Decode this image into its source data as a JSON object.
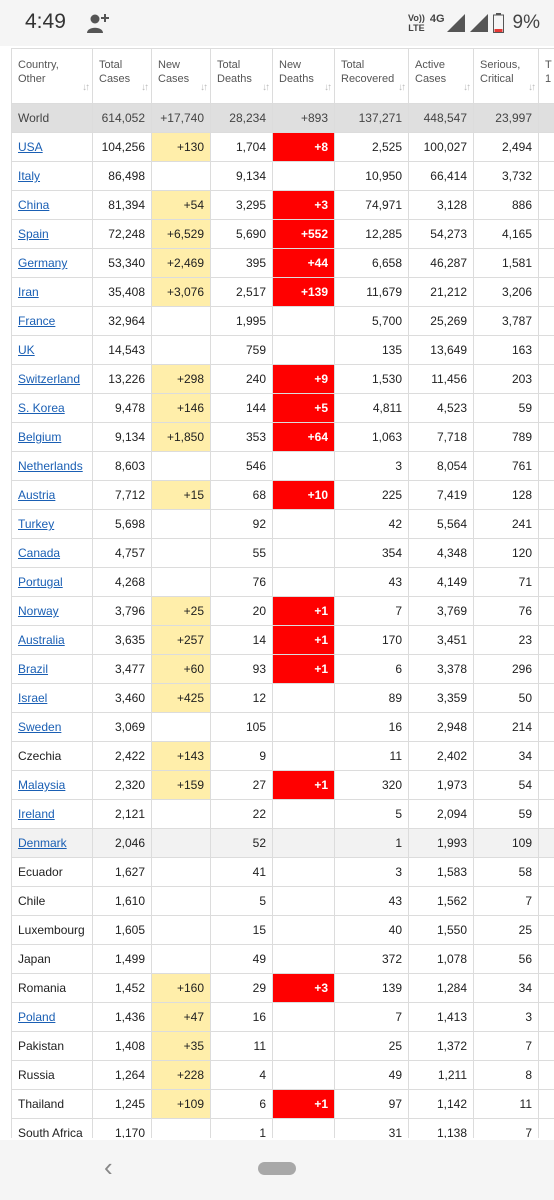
{
  "status_bar": {
    "time": "4:49",
    "volte_top": "Vo))",
    "volte_bottom": "LTE",
    "network": "4G",
    "battery_percent": "9%"
  },
  "table": {
    "columns": [
      [
        "Country,",
        "Other"
      ],
      [
        "Total",
        "Cases"
      ],
      [
        "New",
        "Cases"
      ],
      [
        "Total",
        "Deaths"
      ],
      [
        "New",
        "Deaths"
      ],
      [
        "Total",
        "Recovered"
      ],
      [
        "Active",
        "Cases"
      ],
      [
        "Serious,",
        "Critical"
      ],
      [
        "T",
        "1"
      ]
    ],
    "world": [
      "World",
      "614,052",
      "+17,740",
      "28,234",
      "+893",
      "137,271",
      "448,547",
      "23,997",
      ""
    ],
    "rows": [
      {
        "name": "USA",
        "link": true,
        "tc": "104,256",
        "nc": "+130",
        "td": "1,704",
        "nd": "+8",
        "tr": "2,525",
        "ac": "100,027",
        "sc": "2,494"
      },
      {
        "name": "Italy",
        "link": true,
        "tc": "86,498",
        "nc": "",
        "td": "9,134",
        "nd": "",
        "tr": "10,950",
        "ac": "66,414",
        "sc": "3,732"
      },
      {
        "name": "China",
        "link": true,
        "tc": "81,394",
        "nc": "+54",
        "td": "3,295",
        "nd": "+3",
        "tr": "74,971",
        "ac": "3,128",
        "sc": "886"
      },
      {
        "name": "Spain",
        "link": true,
        "tc": "72,248",
        "nc": "+6,529",
        "td": "5,690",
        "nd": "+552",
        "tr": "12,285",
        "ac": "54,273",
        "sc": "4,165"
      },
      {
        "name": "Germany",
        "link": true,
        "tc": "53,340",
        "nc": "+2,469",
        "td": "395",
        "nd": "+44",
        "tr": "6,658",
        "ac": "46,287",
        "sc": "1,581"
      },
      {
        "name": "Iran",
        "link": true,
        "tc": "35,408",
        "nc": "+3,076",
        "td": "2,517",
        "nd": "+139",
        "tr": "11,679",
        "ac": "21,212",
        "sc": "3,206"
      },
      {
        "name": "France",
        "link": true,
        "tc": "32,964",
        "nc": "",
        "td": "1,995",
        "nd": "",
        "tr": "5,700",
        "ac": "25,269",
        "sc": "3,787"
      },
      {
        "name": "UK",
        "link": true,
        "tc": "14,543",
        "nc": "",
        "td": "759",
        "nd": "",
        "tr": "135",
        "ac": "13,649",
        "sc": "163"
      },
      {
        "name": "Switzerland",
        "link": true,
        "tc": "13,226",
        "nc": "+298",
        "td": "240",
        "nd": "+9",
        "tr": "1,530",
        "ac": "11,456",
        "sc": "203"
      },
      {
        "name": "S. Korea",
        "link": true,
        "tc": "9,478",
        "nc": "+146",
        "td": "144",
        "nd": "+5",
        "tr": "4,811",
        "ac": "4,523",
        "sc": "59"
      },
      {
        "name": "Belgium",
        "link": true,
        "tc": "9,134",
        "nc": "+1,850",
        "td": "353",
        "nd": "+64",
        "tr": "1,063",
        "ac": "7,718",
        "sc": "789"
      },
      {
        "name": "Netherlands",
        "link": true,
        "tc": "8,603",
        "nc": "",
        "td": "546",
        "nd": "",
        "tr": "3",
        "ac": "8,054",
        "sc": "761"
      },
      {
        "name": "Austria",
        "link": true,
        "tc": "7,712",
        "nc": "+15",
        "td": "68",
        "nd": "+10",
        "tr": "225",
        "ac": "7,419",
        "sc": "128"
      },
      {
        "name": "Turkey",
        "link": true,
        "tc": "5,698",
        "nc": "",
        "td": "92",
        "nd": "",
        "tr": "42",
        "ac": "5,564",
        "sc": "241"
      },
      {
        "name": "Canada",
        "link": true,
        "tc": "4,757",
        "nc": "",
        "td": "55",
        "nd": "",
        "tr": "354",
        "ac": "4,348",
        "sc": "120"
      },
      {
        "name": "Portugal",
        "link": true,
        "tc": "4,268",
        "nc": "",
        "td": "76",
        "nd": "",
        "tr": "43",
        "ac": "4,149",
        "sc": "71"
      },
      {
        "name": "Norway",
        "link": true,
        "tc": "3,796",
        "nc": "+25",
        "td": "20",
        "nd": "+1",
        "tr": "7",
        "ac": "3,769",
        "sc": "76"
      },
      {
        "name": "Australia",
        "link": true,
        "tc": "3,635",
        "nc": "+257",
        "td": "14",
        "nd": "+1",
        "tr": "170",
        "ac": "3,451",
        "sc": "23"
      },
      {
        "name": "Brazil",
        "link": true,
        "tc": "3,477",
        "nc": "+60",
        "td": "93",
        "nd": "+1",
        "tr": "6",
        "ac": "3,378",
        "sc": "296"
      },
      {
        "name": "Israel",
        "link": true,
        "tc": "3,460",
        "nc": "+425",
        "td": "12",
        "nd": "",
        "tr": "89",
        "ac": "3,359",
        "sc": "50"
      },
      {
        "name": "Sweden",
        "link": true,
        "tc": "3,069",
        "nc": "",
        "td": "105",
        "nd": "",
        "tr": "16",
        "ac": "2,948",
        "sc": "214"
      },
      {
        "name": "Czechia",
        "link": false,
        "tc": "2,422",
        "nc": "+143",
        "td": "9",
        "nd": "",
        "tr": "11",
        "ac": "2,402",
        "sc": "34"
      },
      {
        "name": "Malaysia",
        "link": true,
        "tc": "2,320",
        "nc": "+159",
        "td": "27",
        "nd": "+1",
        "tr": "320",
        "ac": "1,973",
        "sc": "54"
      },
      {
        "name": "Ireland",
        "link": true,
        "tc": "2,121",
        "nc": "",
        "td": "22",
        "nd": "",
        "tr": "5",
        "ac": "2,094",
        "sc": "59"
      },
      {
        "name": "Denmark",
        "link": true,
        "shaded": true,
        "tc": "2,046",
        "nc": "",
        "td": "52",
        "nd": "",
        "tr": "1",
        "ac": "1,993",
        "sc": "109"
      },
      {
        "name": "Ecuador",
        "link": false,
        "tc": "1,627",
        "nc": "",
        "td": "41",
        "nd": "",
        "tr": "3",
        "ac": "1,583",
        "sc": "58"
      },
      {
        "name": "Chile",
        "link": false,
        "tc": "1,610",
        "nc": "",
        "td": "5",
        "nd": "",
        "tr": "43",
        "ac": "1,562",
        "sc": "7"
      },
      {
        "name": "Luxembourg",
        "link": false,
        "tc": "1,605",
        "nc": "",
        "td": "15",
        "nd": "",
        "tr": "40",
        "ac": "1,550",
        "sc": "25"
      },
      {
        "name": "Japan",
        "link": false,
        "tc": "1,499",
        "nc": "",
        "td": "49",
        "nd": "",
        "tr": "372",
        "ac": "1,078",
        "sc": "56"
      },
      {
        "name": "Romania",
        "link": false,
        "tc": "1,452",
        "nc": "+160",
        "td": "29",
        "nd": "+3",
        "tr": "139",
        "ac": "1,284",
        "sc": "34"
      },
      {
        "name": "Poland",
        "link": true,
        "tc": "1,436",
        "nc": "+47",
        "td": "16",
        "nd": "",
        "tr": "7",
        "ac": "1,413",
        "sc": "3"
      },
      {
        "name": "Pakistan",
        "link": false,
        "tc": "1,408",
        "nc": "+35",
        "td": "11",
        "nd": "",
        "tr": "25",
        "ac": "1,372",
        "sc": "7"
      },
      {
        "name": "Russia",
        "link": false,
        "tc": "1,264",
        "nc": "+228",
        "td": "4",
        "nd": "",
        "tr": "49",
        "ac": "1,211",
        "sc": "8"
      },
      {
        "name": "Thailand",
        "link": false,
        "tc": "1,245",
        "nc": "+109",
        "td": "6",
        "nd": "+1",
        "tr": "97",
        "ac": "1,142",
        "sc": "11"
      },
      {
        "name": "South Africa",
        "link": false,
        "tc": "1,170",
        "nc": "",
        "td": "1",
        "nd": "",
        "tr": "31",
        "ac": "1,138",
        "sc": "7"
      }
    ]
  },
  "colors": {
    "new_cases_highlight": "#ffeeaa",
    "new_deaths_highlight": "#ff0000",
    "link": "#1a5fb4",
    "world_row": "#dfdfdf"
  },
  "icons": {
    "status_person": "person-add-icon",
    "signal": "signal-icon",
    "battery": "battery-icon",
    "sort": "sort-arrows-icon",
    "nav_back": "back-chevron-icon",
    "nav_home": "home-pill-icon"
  }
}
